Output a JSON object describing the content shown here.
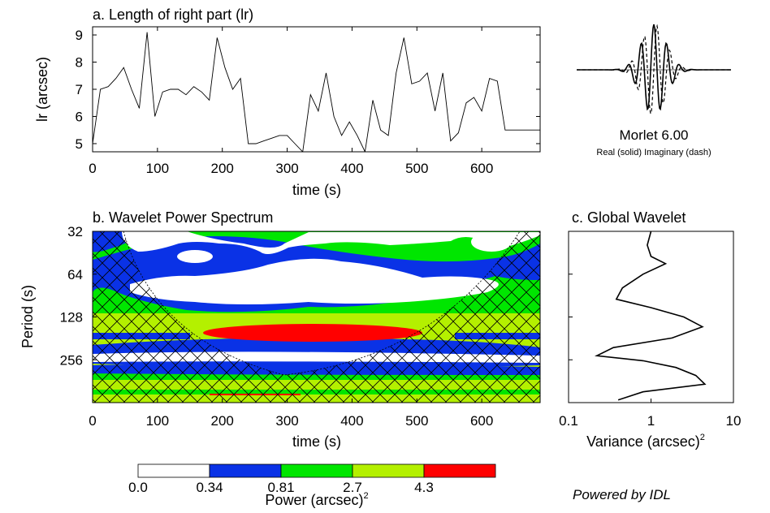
{
  "chart_data": [
    {
      "id": "a",
      "type": "line",
      "title": "a. Length of right part (lr)",
      "xlabel": "time (s)",
      "ylabel": "lr (arcsec)",
      "xlim": [
        0,
        690
      ],
      "ylim": [
        4.7,
        9.3
      ],
      "xticks": [
        0,
        100,
        200,
        300,
        400,
        500,
        600
      ],
      "yticks": [
        5,
        6,
        7,
        8,
        9
      ],
      "x": [
        0,
        12,
        24,
        36,
        48,
        60,
        72,
        84,
        96,
        108,
        120,
        132,
        144,
        156,
        168,
        180,
        192,
        204,
        216,
        228,
        240,
        252,
        264,
        276,
        288,
        300,
        312,
        324,
        336,
        348,
        360,
        372,
        384,
        396,
        408,
        420,
        432,
        444,
        456,
        468,
        480,
        492,
        504,
        516,
        528,
        540,
        552,
        564,
        576,
        588,
        600,
        612,
        624,
        636,
        648,
        660,
        672,
        684,
        690
      ],
      "y": [
        5.0,
        7.0,
        7.1,
        7.4,
        7.8,
        7.0,
        6.3,
        9.1,
        6.0,
        6.9,
        7.0,
        7.0,
        6.8,
        7.1,
        6.9,
        6.6,
        8.9,
        7.8,
        7.0,
        7.4,
        5.0,
        5.0,
        5.1,
        5.2,
        5.3,
        5.3,
        5.0,
        4.7,
        6.8,
        6.2,
        7.6,
        6.0,
        5.3,
        5.8,
        5.3,
        4.7,
        6.6,
        5.5,
        5.3,
        7.6,
        8.9,
        7.2,
        7.3,
        7.6,
        6.2,
        7.6,
        5.1,
        5.4,
        6.5,
        6.7,
        6.2,
        7.4,
        7.3,
        5.5,
        5.5,
        5.5,
        5.5,
        5.5,
        5.5
      ]
    },
    {
      "id": "b",
      "type": "heatmap",
      "title": "b. Wavelet Power Spectrum",
      "xlabel": "time (s)",
      "ylabel": "Period (s)",
      "xlim": [
        0,
        690
      ],
      "ylim": [
        32,
        512
      ],
      "xticks": [
        0,
        100,
        200,
        300,
        400,
        500,
        600
      ],
      "yticks": [
        32,
        64,
        128,
        256
      ],
      "colorbar": {
        "label": "Power (arcsec)",
        "label_sup": "2",
        "levels": [
          "0.0",
          "0.34",
          "0.81",
          "2.7",
          "4.3"
        ],
        "colors": [
          "#ffffff",
          "#0a32e6",
          "#00e600",
          "#b4f000",
          "#ff0000"
        ]
      }
    },
    {
      "id": "c",
      "type": "line",
      "title": "c. Global Wavelet",
      "xlabel": "Variance (arcsec)",
      "xlabel_sup": "2",
      "xscale": "log",
      "xlim": [
        0.1,
        10
      ],
      "xticks": [
        "0.1",
        "1",
        "10"
      ],
      "period": [
        32,
        40,
        48,
        54,
        64,
        80,
        96,
        110,
        128,
        150,
        180,
        210,
        240,
        260,
        290,
        330,
        380,
        430,
        490
      ],
      "variance": [
        1.0,
        0.9,
        1.0,
        1.5,
        0.8,
        0.45,
        0.38,
        1.0,
        2.5,
        4.2,
        1.8,
        0.35,
        0.22,
        0.8,
        2.0,
        3.5,
        4.5,
        0.8,
        0.4
      ]
    }
  ],
  "morlet": {
    "title": "Morlet 6.00",
    "caption": "Real (solid)  Imaginary (dash)"
  },
  "footer": "Powered by IDL"
}
